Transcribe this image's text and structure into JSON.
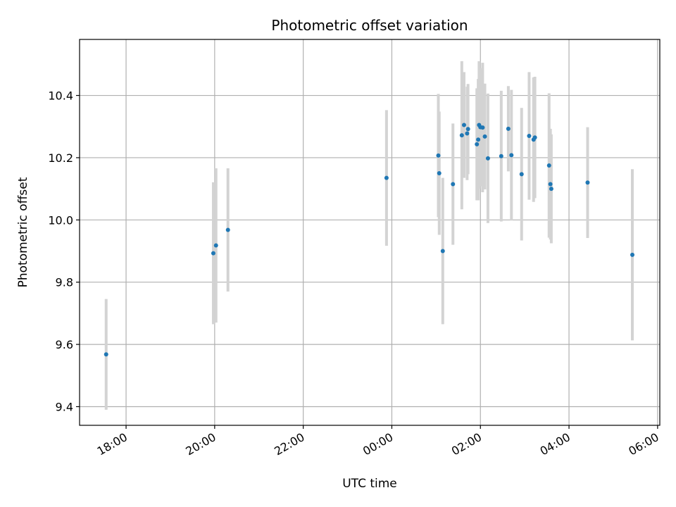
{
  "chart_data": {
    "type": "scatter",
    "title": "Photometric offset variation",
    "xlabel": "UTC time",
    "ylabel": "Photometric offset",
    "x_unit": "hours (UTC, continuing past midnight)",
    "xlim": [
      16.95,
      30.05
    ],
    "ylim": [
      9.34,
      10.58
    ],
    "x_ticks": [
      {
        "value": 18,
        "label": "18:00"
      },
      {
        "value": 20,
        "label": "20:00"
      },
      {
        "value": 22,
        "label": "22:00"
      },
      {
        "value": 24,
        "label": "00:00"
      },
      {
        "value": 26,
        "label": "02:00"
      },
      {
        "value": 28,
        "label": "04:00"
      },
      {
        "value": 30,
        "label": "06:00"
      }
    ],
    "y_ticks": [
      {
        "value": 9.4,
        "label": "9.4"
      },
      {
        "value": 9.6,
        "label": "9.6"
      },
      {
        "value": 9.8,
        "label": "9.8"
      },
      {
        "value": 10.0,
        "label": "10.0"
      },
      {
        "value": 10.2,
        "label": "10.2"
      },
      {
        "value": 10.4,
        "label": "10.4"
      }
    ],
    "grid": true,
    "point_color": "#1f77b4",
    "errorbar_color": "#d3d3d3",
    "points": [
      {
        "x": 17.55,
        "y": 9.568,
        "err": 0.178
      },
      {
        "x": 19.97,
        "y": 9.893,
        "err": 0.228
      },
      {
        "x": 20.03,
        "y": 9.918,
        "err": 0.248
      },
      {
        "x": 20.3,
        "y": 9.968,
        "err": 0.198
      },
      {
        "x": 23.88,
        "y": 10.135,
        "err": 0.218
      },
      {
        "x": 25.05,
        "y": 10.207,
        "err": 0.198
      },
      {
        "x": 25.07,
        "y": 10.15,
        "err": 0.198
      },
      {
        "x": 25.15,
        "y": 9.9,
        "err": 0.235
      },
      {
        "x": 25.38,
        "y": 10.115,
        "err": 0.195
      },
      {
        "x": 25.58,
        "y": 10.272,
        "err": 0.238
      },
      {
        "x": 25.63,
        "y": 10.305,
        "err": 0.17
      },
      {
        "x": 25.7,
        "y": 10.278,
        "err": 0.15
      },
      {
        "x": 25.72,
        "y": 10.292,
        "err": 0.145
      },
      {
        "x": 25.92,
        "y": 10.243,
        "err": 0.18
      },
      {
        "x": 25.95,
        "y": 10.258,
        "err": 0.195
      },
      {
        "x": 25.97,
        "y": 10.305,
        "err": 0.205
      },
      {
        "x": 26.0,
        "y": 10.298,
        "err": 0.19
      },
      {
        "x": 26.05,
        "y": 10.297,
        "err": 0.208
      },
      {
        "x": 26.1,
        "y": 10.268,
        "err": 0.17
      },
      {
        "x": 26.17,
        "y": 10.198,
        "err": 0.208
      },
      {
        "x": 26.47,
        "y": 10.205,
        "err": 0.21
      },
      {
        "x": 26.63,
        "y": 10.293,
        "err": 0.137
      },
      {
        "x": 26.7,
        "y": 10.208,
        "err": 0.21
      },
      {
        "x": 26.93,
        "y": 10.147,
        "err": 0.213
      },
      {
        "x": 27.1,
        "y": 10.27,
        "err": 0.205
      },
      {
        "x": 27.2,
        "y": 10.258,
        "err": 0.2
      },
      {
        "x": 27.23,
        "y": 10.265,
        "err": 0.195
      },
      {
        "x": 27.55,
        "y": 10.175,
        "err": 0.232
      },
      {
        "x": 27.58,
        "y": 10.115,
        "err": 0.178
      },
      {
        "x": 27.6,
        "y": 10.1,
        "err": 0.175
      },
      {
        "x": 28.42,
        "y": 10.12,
        "err": 0.178
      },
      {
        "x": 29.43,
        "y": 9.888,
        "err": 0.275
      }
    ]
  }
}
